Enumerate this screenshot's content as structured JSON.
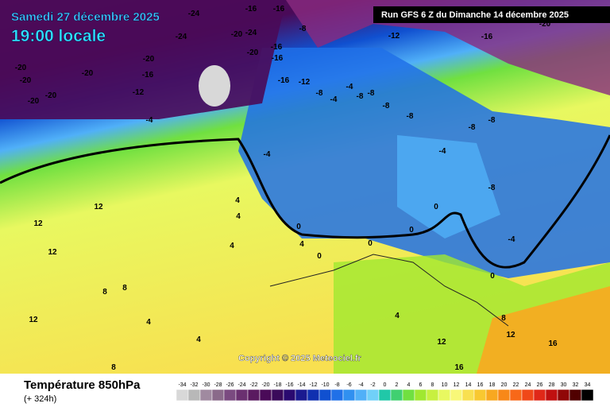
{
  "header": {
    "date": "Samedi 27 décembre 2025",
    "time": "19:00 locale",
    "run": "Run GFS 6 Z du Dimanche 14 décembre 2025"
  },
  "copyright": "Copyright © 2025 Meteociel.fr",
  "footer": {
    "title": "Température 850hPa",
    "lead": "(+ 324h)"
  },
  "contour_labels": [
    "-24",
    "-16",
    "-16",
    "-24",
    "-20",
    "-24",
    "-16",
    "-20",
    "-16",
    "-20",
    "-20",
    "-16",
    "-20",
    "-20",
    "-20",
    "-20",
    "-12",
    "-16",
    "-12",
    "-8",
    "-12",
    "-16",
    "-20",
    "-4",
    "-8",
    "-4",
    "-4",
    "-8",
    "-8",
    "-8",
    "-8",
    "-8",
    "-8",
    "-4",
    "-4",
    "-8",
    "12",
    "12",
    "12",
    "4",
    "4",
    "4",
    "0",
    "4",
    "0",
    "0",
    "0",
    "0",
    "8",
    "8",
    "12",
    "4",
    "12",
    "16",
    "12",
    "8",
    "16",
    "8",
    "4",
    "-4",
    "0",
    "4"
  ],
  "scale": {
    "values": [
      -34,
      -32,
      -30,
      -28,
      -26,
      -24,
      -22,
      -20,
      -18,
      -16,
      -14,
      -12,
      -10,
      -8,
      -6,
      -4,
      -2,
      0,
      2,
      4,
      6,
      8,
      10,
      12,
      14,
      16,
      18,
      20,
      22,
      24,
      26,
      28,
      30,
      32,
      34
    ],
    "colors": [
      "#d8d8d8",
      "#b8b8b8",
      "#a08aa0",
      "#8a6a8a",
      "#7a4a80",
      "#6a3070",
      "#5a1a60",
      "#4a0a58",
      "#3a0a5a",
      "#2a0a70",
      "#1a1a90",
      "#1030b0",
      "#1050d0",
      "#2070e8",
      "#3090f0",
      "#50b0f8",
      "#70d0f8",
      "#20c8a8",
      "#40d070",
      "#70e040",
      "#a0e830",
      "#c8f040",
      "#e8f860",
      "#f8f878",
      "#f8e050",
      "#f8c830",
      "#f8a820",
      "#f88818",
      "#f86818",
      "#f04818",
      "#e02818",
      "#c01010",
      "#900808",
      "#500000",
      "#000000"
    ]
  }
}
